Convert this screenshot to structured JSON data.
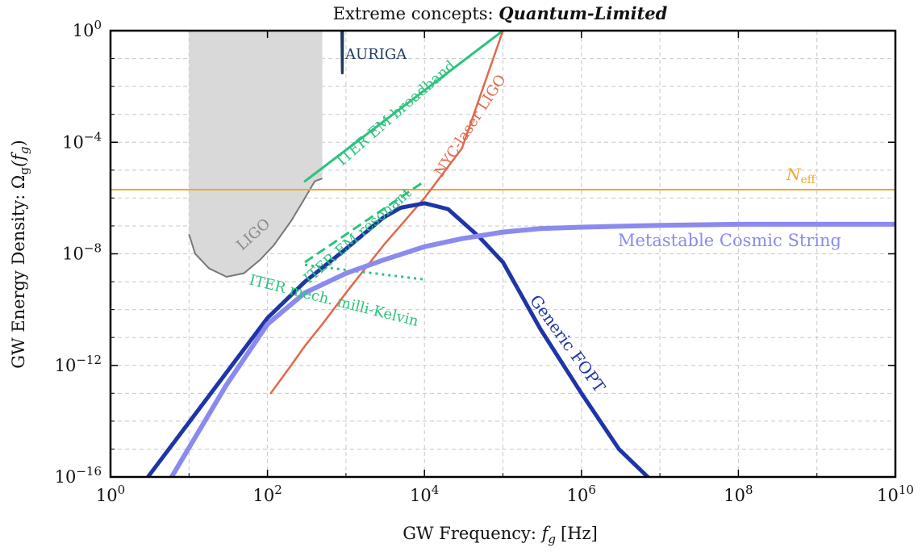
{
  "chart_data": {
    "type": "line",
    "title_prefix": "Extreme concepts: ",
    "title_emphasis": "Quantum-Limited",
    "xlabel_prefix": "GW Frequency: ",
    "xlabel_symbol": "f",
    "xlabel_subscript": "g",
    "xlabel_unit": "[Hz]",
    "ylabel_prefix": "GW Energy Density: ",
    "ylabel_symbol": "Ω",
    "ylabel_subscript": "g",
    "ylabel_arg": "(f",
    "ylabel_arg_sub": "g",
    "ylabel_arg_close": ")",
    "x_scale": "log",
    "y_scale": "log",
    "xlim": [
      1,
      10000000000.0
    ],
    "ylim": [
      1e-16,
      1
    ],
    "grid": true,
    "x_ticks": [
      {
        "value": 1,
        "base": "10",
        "exp": "0"
      },
      {
        "value": 100,
        "base": "10",
        "exp": "2"
      },
      {
        "value": 10000,
        "base": "10",
        "exp": "4"
      },
      {
        "value": 1000000,
        "base": "10",
        "exp": "6"
      },
      {
        "value": 100000000,
        "base": "10",
        "exp": "8"
      },
      {
        "value": 10000000000,
        "base": "10",
        "exp": "10"
      }
    ],
    "y_ticks": [
      {
        "value": 1e-16,
        "base": "10",
        "exp": "−16"
      },
      {
        "value": 1e-12,
        "base": "10",
        "exp": "−12"
      },
      {
        "value": 1e-08,
        "base": "10",
        "exp": "−8"
      },
      {
        "value": 0.0001,
        "base": "10",
        "exp": "−4"
      },
      {
        "value": 1,
        "base": "10",
        "exp": "0"
      }
    ],
    "regions": [
      {
        "label": "LIGO",
        "color": "#d9d9d9",
        "edge_color": "#777777",
        "x_range": [
          10,
          500
        ],
        "curve": [
          [
            10,
            5e-08
          ],
          [
            12,
            1e-08
          ],
          [
            18,
            3e-09
          ],
          [
            30,
            1.5e-09
          ],
          [
            50,
            2e-09
          ],
          [
            80,
            6e-09
          ],
          [
            120,
            2e-08
          ],
          [
            200,
            1.5e-07
          ],
          [
            300,
            1e-06
          ],
          [
            400,
            4e-06
          ],
          [
            500,
            5e-06
          ]
        ]
      }
    ],
    "series": [
      {
        "name": "AURIGA",
        "color": "#1f3a5f",
        "points": [
          [
            880,
            1
          ],
          [
            885,
            0.3
          ],
          [
            890,
            0.08
          ],
          [
            895,
            0.03
          ],
          [
            900,
            0.03
          ],
          [
            905,
            0.12
          ],
          [
            910,
            1
          ]
        ]
      },
      {
        "name": "ITER EM broadband",
        "color": "#2ec27e",
        "points": [
          [
            300,
            4e-06
          ],
          [
            100000,
            1
          ]
        ]
      },
      {
        "name": "NYC-laser LIGO",
        "color": "#e0694a",
        "points": [
          [
            110,
            1e-13
          ],
          [
            200,
            1e-12
          ],
          [
            300,
            5e-12
          ],
          [
            500,
            3e-11
          ],
          [
            1000,
            4e-10
          ],
          [
            3000,
            2e-08
          ],
          [
            10000,
            1e-06
          ],
          [
            30000,
            6e-05
          ],
          [
            100000,
            1
          ]
        ]
      },
      {
        "name": "ITER EM resonant",
        "color": "#2ec27e",
        "dash": "dashed",
        "points": [
          [
            300,
            5e-09
          ],
          [
            10000,
            4e-06
          ]
        ]
      },
      {
        "name": "ITER mech. milli-Kelvin",
        "color": "#2ec27e",
        "dash": "dotted",
        "points": [
          [
            300,
            4e-09
          ],
          [
            10000,
            1.2e-09
          ]
        ]
      },
      {
        "name": "Generic FOPT",
        "color": "#1e35a6",
        "points": [
          [
            3,
            1e-16
          ],
          [
            100,
            5e-11
          ],
          [
            300,
            1e-09
          ],
          [
            1000,
            1.5e-08
          ],
          [
            3000,
            2e-07
          ],
          [
            5000,
            4.5e-07
          ],
          [
            10000,
            6.5e-07
          ],
          [
            20000,
            4e-07
          ],
          [
            50000,
            4e-08
          ],
          [
            100000,
            5e-09
          ],
          [
            300000,
            2e-11
          ],
          [
            1000000,
            1e-13
          ],
          [
            3000000,
            1e-15
          ],
          [
            7000000,
            1e-16
          ]
        ]
      },
      {
        "name": "Metastable Cosmic String",
        "color": "#8a8aef",
        "points": [
          [
            6,
            1e-16
          ],
          [
            30,
            2e-13
          ],
          [
            100,
            3e-11
          ],
          [
            300,
            4e-10
          ],
          [
            1000,
            2e-09
          ],
          [
            3000,
            6e-09
          ],
          [
            10000,
            1.8e-08
          ],
          [
            30000,
            3.5e-08
          ],
          [
            100000,
            6e-08
          ],
          [
            300000,
            8e-08
          ],
          [
            1000000,
            9e-08
          ],
          [
            10000000,
            1.05e-07
          ],
          [
            100000000,
            1.15e-07
          ],
          [
            1000000000,
            1.15e-07
          ],
          [
            10000000000,
            1.15e-07
          ]
        ]
      }
    ],
    "hlines": [
      {
        "name_symbol": "N",
        "name_subscript": "eff",
        "color": "#f5a623",
        "y": 2e-06
      }
    ]
  }
}
